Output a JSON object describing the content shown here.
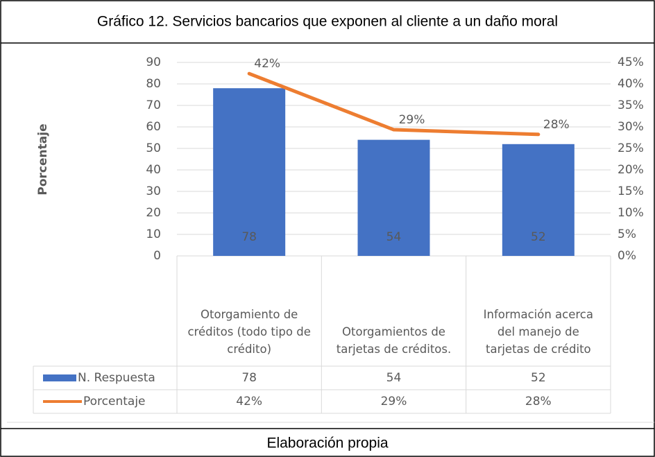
{
  "chart_data": {
    "type": "bar",
    "title": "Gráfico 12. Servicios bancarios que exponen al cliente a un daño moral",
    "y_label": "Porcentaje",
    "source": "Elaboración propia",
    "categories": [
      "Otorgamiento de créditos (todo tipo de crédito)",
      "Otorgamientos de tarjetas de créditos.",
      "Información acerca del manejo de tarjetas de crédito"
    ],
    "series": [
      {
        "name": "N. Respuesta",
        "color": "#4472c4",
        "type": "bar",
        "values": [
          78,
          54,
          52
        ]
      },
      {
        "name": "Porcentaje",
        "color": "#ed7d31",
        "type": "line",
        "axis": "y2",
        "values": [
          42.39,
          29.35,
          28.26
        ],
        "value_labels": [
          "42%",
          "29%",
          "28%"
        ]
      }
    ],
    "ylim": [
      0,
      90
    ],
    "yticks": [
      0,
      10,
      20,
      30,
      40,
      50,
      60,
      70,
      80,
      90
    ],
    "y2lim": [
      0,
      45
    ],
    "y2ticks": [
      {
        "value": 0,
        "label": "0%"
      },
      {
        "value": 5,
        "label": "5%"
      },
      {
        "value": 10,
        "label": "10%"
      },
      {
        "value": 15,
        "label": "15%"
      },
      {
        "value": 20,
        "label": "20%"
      },
      {
        "value": 25,
        "label": "25%"
      },
      {
        "value": 30,
        "label": "30%"
      },
      {
        "value": 35,
        "label": "35%"
      },
      {
        "value": 40,
        "label": "40%"
      },
      {
        "value": 45,
        "label": "45%"
      }
    ],
    "grid": true,
    "data_table": true
  }
}
